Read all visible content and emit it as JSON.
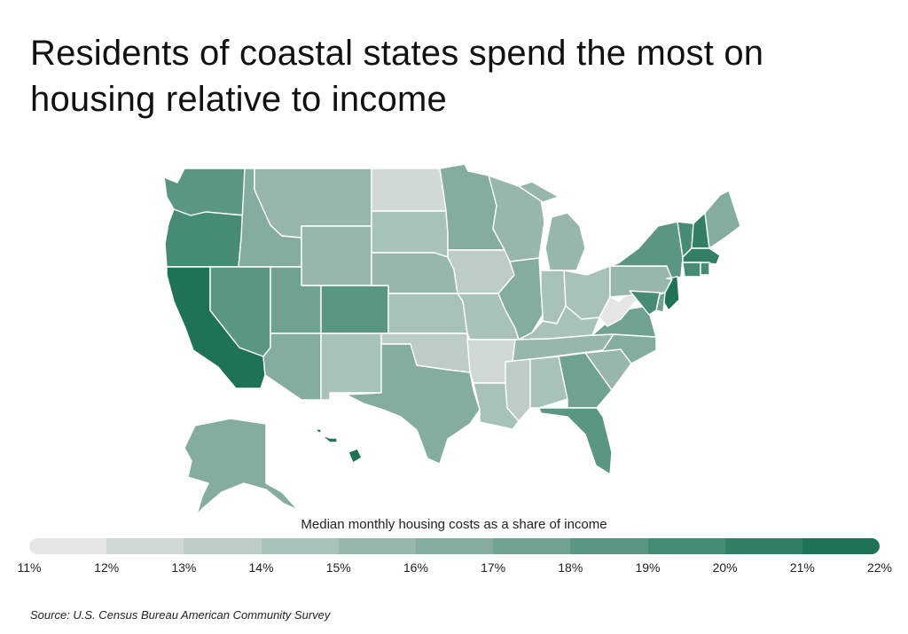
{
  "title": "Residents of coastal states spend the most on housing relative to income",
  "legend": {
    "title": "Median monthly housing costs as a share of income",
    "ticks": [
      "11%",
      "12%",
      "13%",
      "14%",
      "15%",
      "16%",
      "17%",
      "18%",
      "19%",
      "20%",
      "21%",
      "22%"
    ],
    "colors": [
      "#e4e6e5",
      "#d1d9d6",
      "#bccdc6",
      "#a9c2b9",
      "#96b7aa",
      "#84ad9d",
      "#6fa290",
      "#5a9681",
      "#468b73",
      "#327f65",
      "#1e7357",
      "#0a674a"
    ]
  },
  "states": {
    "WA": 18.5,
    "OR": 19.5,
    "CA": 21.5,
    "ID": 16,
    "NV": 18,
    "MT": 15.5,
    "WY": 15,
    "UT": 17.5,
    "AZ": 16.5,
    "CO": 18.5,
    "NM": 14.5,
    "ND": 12,
    "SD": 14,
    "NE": 15,
    "KS": 14.5,
    "OK": 13.5,
    "TX": 16.5,
    "MN": 16.5,
    "IA": 13.5,
    "MO": 14.5,
    "AR": 12.5,
    "LA": 14,
    "WI": 15.5,
    "IL": 16.5,
    "MI": 15.5,
    "IN": 14,
    "OH": 14.5,
    "KY": 14,
    "TN": 15,
    "MS": 13.5,
    "AL": 14,
    "GA": 17,
    "FL": 18,
    "SC": 15,
    "NC": 16,
    "VA": 17,
    "WV": 11.5,
    "PA": 15.5,
    "NY": 18,
    "VT": 19,
    "NH": 20,
    "ME": 16.5,
    "MA": 20,
    "RI": 19.5,
    "CT": 19.5,
    "NJ": 21,
    "DE": 17.5,
    "MD": 19,
    "AK": 16.5,
    "HI": 21.5
  },
  "source": "Source:  U.S. Census Bureau American Community Survey"
}
